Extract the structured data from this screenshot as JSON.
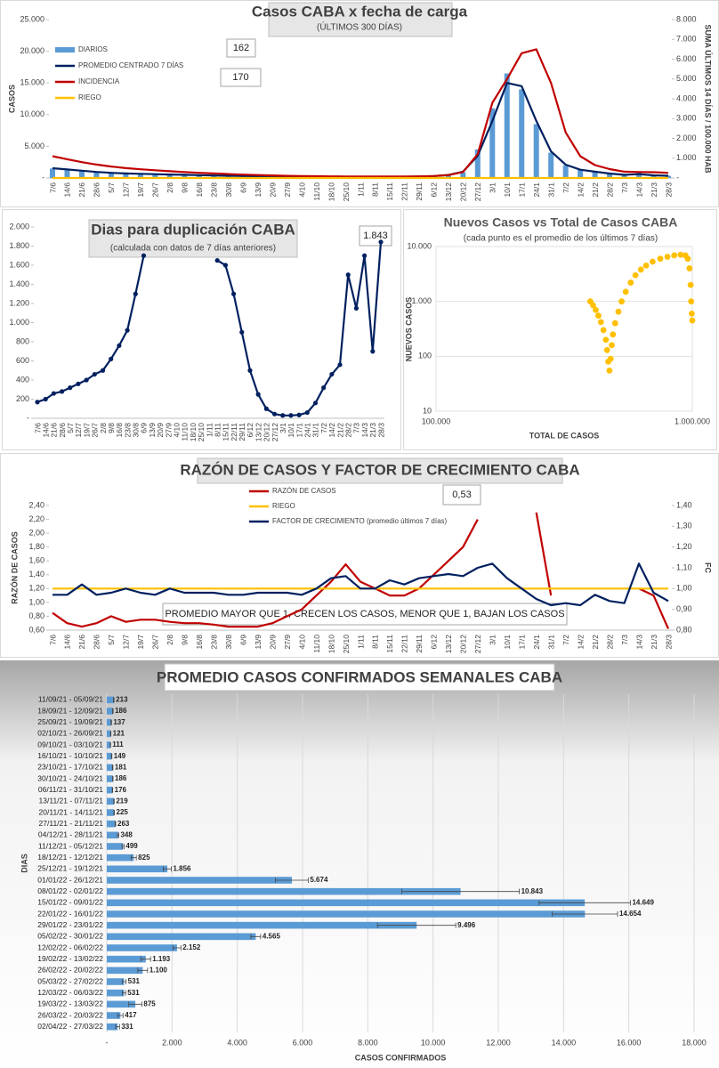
{
  "chart_data": [
    {
      "type": "combo",
      "title": "Casos  CABA x fecha  de carga",
      "subtitle": "(ÚLTIMOS 300 DÍAS)",
      "y_label": "CASOS",
      "y2_label": "SUMA ÚLTIMOS 14 DÍAS / 100.000 HAB",
      "annotations": [
        "162",
        "170"
      ],
      "legend": "top-left",
      "categories": [
        "7/6",
        "14/6",
        "21/6",
        "28/6",
        "5/7",
        "12/7",
        "19/7",
        "26/7",
        "2/8",
        "9/8",
        "16/8",
        "23/8",
        "30/8",
        "6/9",
        "13/9",
        "20/9",
        "27/9",
        "4/10",
        "11/10",
        "18/10",
        "25/10",
        "1/11",
        "8/11",
        "15/11",
        "22/11",
        "29/11",
        "6/12",
        "13/12",
        "20/12",
        "27/12",
        "3/1",
        "10/1",
        "17/1",
        "24/1",
        "31/1",
        "7/2",
        "14/2",
        "21/2",
        "28/2",
        "7/3",
        "14/3",
        "21/3",
        "28/3"
      ],
      "ylim": [
        0,
        25000
      ],
      "yticks": [
        {
          "value": 0,
          "label": "-"
        },
        {
          "value": 5000,
          "label": "5.000"
        },
        {
          "value": 10000,
          "label": "10.000"
        },
        {
          "value": 15000,
          "label": "15.000"
        },
        {
          "value": 20000,
          "label": "20.000"
        },
        {
          "value": 25000,
          "label": "25.000"
        }
      ],
      "y2lim": [
        0,
        8000
      ],
      "y2ticks": [
        {
          "value": 0,
          "label": "-"
        },
        {
          "value": 1000,
          "label": "1.000"
        },
        {
          "value": 2000,
          "label": "2.000"
        },
        {
          "value": 3000,
          "label": "3.000"
        },
        {
          "value": 4000,
          "label": "4.000"
        },
        {
          "value": 5000,
          "label": "5.000"
        },
        {
          "value": 6000,
          "label": "6.000"
        },
        {
          "value": 7000,
          "label": "7.000"
        },
        {
          "value": 8000,
          "label": "8.000"
        }
      ],
      "series": [
        {
          "name": "DIARIOS",
          "type": "bar",
          "color": "#5b9bd5",
          "values": [
            1500,
            1300,
            1100,
            900,
            800,
            700,
            650,
            600,
            550,
            500,
            450,
            400,
            350,
            300,
            280,
            250,
            230,
            220,
            200,
            200,
            190,
            180,
            180,
            190,
            200,
            230,
            300,
            500,
            900,
            4500,
            11000,
            16500,
            14000,
            8500,
            4000,
            2000,
            1300,
            1000,
            700,
            500,
            900,
            400,
            350
          ]
        },
        {
          "name": "PROMEDIO CENTRADO 7 DÍAS",
          "type": "line",
          "color": "#002060",
          "values": [
            1550,
            1350,
            1150,
            950,
            820,
            720,
            660,
            600,
            550,
            500,
            450,
            400,
            350,
            310,
            280,
            250,
            230,
            220,
            200,
            200,
            190,
            180,
            180,
            190,
            200,
            230,
            300,
            480,
            1000,
            3500,
            9000,
            15000,
            14500,
            9000,
            4200,
            2100,
            1300,
            1000,
            700,
            500,
            600,
            420,
            350
          ]
        },
        {
          "name": "INCIDENCIA",
          "type": "line",
          "axis": "y2",
          "color": "#c00000",
          "values": [
            1100,
            950,
            800,
            680,
            580,
            500,
            440,
            390,
            340,
            300,
            260,
            230,
            200,
            170,
            150,
            130,
            110,
            100,
            90,
            80,
            75,
            70,
            70,
            70,
            75,
            80,
            100,
            150,
            300,
            1200,
            3800,
            5000,
            6300,
            6500,
            4800,
            2300,
            1100,
            650,
            450,
            320,
            300,
            290,
            260
          ]
        },
        {
          "name": "RIEGO",
          "type": "line",
          "axis": "y2",
          "color": "#ffc000",
          "values": [
            0,
            0,
            0,
            0,
            0,
            0,
            0,
            0,
            0,
            0,
            0,
            0,
            0,
            0,
            0,
            0,
            0,
            0,
            0,
            0,
            0,
            0,
            0,
            0,
            0,
            0,
            0,
            0,
            0,
            0,
            0,
            0,
            0,
            0,
            0,
            0,
            0,
            0,
            0,
            0,
            0,
            0,
            0
          ]
        }
      ]
    },
    {
      "type": "line",
      "title": "Dias para duplicación CABA",
      "subtitle": "(calculada con datos de 7 días anteriores)",
      "annotations": [
        "1.843"
      ],
      "categories": [
        "7/6",
        "14/6",
        "21/6",
        "28/6",
        "5/7",
        "12/7",
        "19/7",
        "26/7",
        "2/8",
        "9/8",
        "16/8",
        "23/8",
        "30/8",
        "6/9",
        "13/9",
        "20/9",
        "27/9",
        "4/10",
        "11/10",
        "18/10",
        "25/10",
        "1/11",
        "8/11",
        "15/11",
        "22/11",
        "29/11",
        "6/12",
        "13/12",
        "20/12",
        "27/12",
        "3/1",
        "10/1",
        "17/1",
        "24/1",
        "31/1",
        "7/2",
        "14/2",
        "21/2",
        "28/2",
        "7/3",
        "14/3",
        "21/3",
        "28/3"
      ],
      "ylim": [
        0,
        2000
      ],
      "yticks": [
        {
          "value": 0,
          "label": "-"
        },
        200,
        400,
        600,
        800,
        {
          "value": 1000,
          "label": "1.000"
        },
        {
          "value": 1200,
          "label": "1.200"
        },
        {
          "value": 1400,
          "label": "1.400"
        },
        {
          "value": 1600,
          "label": "1.600"
        },
        {
          "value": 1800,
          "label": "1.800"
        },
        {
          "value": 2000,
          "label": "2.000"
        }
      ],
      "series": [
        {
          "type": "line",
          "markers": true,
          "color": "#002060",
          "values": [
            170,
            200,
            260,
            280,
            320,
            360,
            400,
            460,
            500,
            620,
            760,
            920,
            1300,
            1700,
            null,
            null,
            null,
            null,
            null,
            null,
            null,
            null,
            1650,
            1600,
            1300,
            900,
            500,
            250,
            100,
            45,
            30,
            30,
            35,
            60,
            160,
            320,
            460,
            560,
            1500,
            1150,
            1700,
            700,
            1843
          ]
        }
      ]
    },
    {
      "type": "scatter",
      "title": "Nuevos Casos vs Total de Casos CABA",
      "subtitle": "(cada punto es el promedio de los últimos 7 días)",
      "x_label": "TOTAL DE CASOS",
      "y_label": "NUEVOS CASOS",
      "log_x": true,
      "log_y": true,
      "color": "#ffc000",
      "x": [
        400000,
        410000,
        420000,
        430000,
        440000,
        450000,
        460000,
        465000,
        470000,
        475000,
        480000,
        485000,
        490000,
        500000,
        515000,
        530000,
        550000,
        575000,
        600000,
        630000,
        660000,
        700000,
        750000,
        800000,
        850000,
        900000,
        940000,
        960000,
        975000,
        985000,
        990000,
        995000,
        1000000
      ],
      "values": [
        1000,
        850,
        700,
        550,
        420,
        300,
        200,
        130,
        80,
        55,
        90,
        160,
        250,
        400,
        650,
        1000,
        1500,
        2200,
        3000,
        3800,
        4500,
        5300,
        6000,
        6500,
        6900,
        7100,
        6900,
        6000,
        4000,
        2000,
        1000,
        600,
        450
      ],
      "xlim": [
        100000,
        1000000
      ],
      "xticks": [
        {
          "value": 100000,
          "label": "100.000"
        },
        {
          "value": 1000000,
          "label": "1.000.000"
        }
      ],
      "ylim": [
        10,
        10000
      ],
      "yticks": [
        10,
        100,
        {
          "value": 1000,
          "label": "1.000"
        },
        {
          "value": 10000,
          "label": "10.000"
        }
      ]
    },
    {
      "type": "line",
      "title": "RAZÓN DE CASOS Y FACTOR DE CRECIMIENTO CABA",
      "y_label": "RAZÓN DE CASOS",
      "y2_label": "FC",
      "legend": "top-center",
      "annotations": [
        "0,53",
        "PROMEDIO MAYOR QUE 1, CRECEN LOS CASOS, MENOR QUE 1, BAJAN LOS CASOS"
      ],
      "categories": [
        "7/6",
        "14/6",
        "21/6",
        "28/6",
        "5/7",
        "12/7",
        "19/7",
        "26/7",
        "2/8",
        "9/8",
        "16/8",
        "23/8",
        "30/8",
        "6/9",
        "13/9",
        "20/9",
        "27/9",
        "4/10",
        "11/10",
        "18/10",
        "25/10",
        "1/11",
        "8/11",
        "15/11",
        "22/11",
        "29/11",
        "6/12",
        "13/12",
        "20/12",
        "27/12",
        "3/1",
        "10/1",
        "17/1",
        "24/1",
        "31/1",
        "7/2",
        "14/2",
        "21/2",
        "28/2",
        "7/3",
        "14/3",
        "21/3",
        "28/3"
      ],
      "ylim": [
        0.6,
        2.4
      ],
      "yticks": [
        {
          "value": 0.6,
          "label": "0,60"
        },
        {
          "value": 0.8,
          "label": "0,80"
        },
        {
          "value": 1,
          "label": "1,00"
        },
        {
          "value": 1.2,
          "label": "1,20"
        },
        {
          "value": 1.4,
          "label": "1,40"
        },
        {
          "value": 1.6,
          "label": "1,60"
        },
        {
          "value": 1.8,
          "label": "1,80"
        },
        {
          "value": 2,
          "label": "2,00"
        },
        {
          "value": 2.2,
          "label": "2,20"
        },
        {
          "value": 2.4,
          "label": "2,40"
        }
      ],
      "y2lim": [
        0.8,
        1.4
      ],
      "y2ticks": [
        {
          "value": 0.8,
          "label": "0,80"
        },
        {
          "value": 0.9,
          "label": "0,90"
        },
        {
          "value": 1,
          "label": "1,00"
        },
        {
          "value": 1.1,
          "label": "1,10"
        },
        {
          "value": 1.2,
          "label": "1,20"
        },
        {
          "value": 1.3,
          "label": "1,30"
        },
        {
          "value": 1.4,
          "label": "1,40"
        }
      ],
      "series": [
        {
          "name": "RAZÓN DE CASOS",
          "type": "line",
          "color": "#c00000",
          "values": [
            0.85,
            0.7,
            0.65,
            0.7,
            0.8,
            0.72,
            0.75,
            0.75,
            0.72,
            0.7,
            0.7,
            0.68,
            0.65,
            0.65,
            0.65,
            0.7,
            0.8,
            0.9,
            1.1,
            1.3,
            1.55,
            1.3,
            1.2,
            1.1,
            1.1,
            1.2,
            1.4,
            1.6,
            1.8,
            2.2,
            null,
            null,
            null,
            2.3,
            1.1,
            null,
            null,
            null,
            null,
            null,
            1.2,
            1.1,
            0.62
          ]
        },
        {
          "name": "RIEGO",
          "type": "line",
          "axis": "y2",
          "color": "#ffc000",
          "values": [
            1,
            1,
            1,
            1,
            1,
            1,
            1,
            1,
            1,
            1,
            1,
            1,
            1,
            1,
            1,
            1,
            1,
            1,
            1,
            1,
            1,
            1,
            1,
            1,
            1,
            1,
            1,
            1,
            1,
            1,
            1,
            1,
            1,
            1,
            1,
            1,
            1,
            1,
            1,
            1,
            1,
            1,
            1
          ]
        },
        {
          "name": "FACTOR DE CRECIMIENTO (promedio últimos 7 días)",
          "type": "line",
          "axis": "y2",
          "color": "#002060",
          "values": [
            0.97,
            0.97,
            1.02,
            0.97,
            0.98,
            1.0,
            0.98,
            0.97,
            1.0,
            0.98,
            0.98,
            0.98,
            0.97,
            0.97,
            0.98,
            0.98,
            0.98,
            0.97,
            1.0,
            1.05,
            1.06,
            1.0,
            1.0,
            1.04,
            1.02,
            1.05,
            1.06,
            1.07,
            1.06,
            1.1,
            1.12,
            1.05,
            1.0,
            0.95,
            0.92,
            0.93,
            0.92,
            0.97,
            0.94,
            0.93,
            1.12,
            0.98,
            0.94
          ]
        }
      ]
    },
    {
      "type": "barh",
      "title": "PROMEDIO CASOS CONFIRMADOS SEMANALES CABA",
      "x_label": "CASOS CONFIRMADOS",
      "y_label": "DIAS",
      "color": "#5b9bd5",
      "grid": true,
      "categories": [
        "11/09/21 - 05/09/21",
        "18/09/21 - 12/09/21",
        "25/09/21 - 19/09/21",
        "02/10/21 - 26/09/21",
        "09/10/21 - 03/10/21",
        "16/10/21 - 10/10/21",
        "23/10/21 - 17/10/21",
        "30/10/21 - 24/10/21",
        "06/11/21 - 31/10/21",
        "13/11/21 - 07/11/21",
        "20/11/21 - 14/11/21",
        "27/11/21 - 21/11/21",
        "04/12/21 - 28/11/21",
        "11/12/21 - 05/12/21",
        "18/12/21 - 12/12/21",
        "25/12/21 - 19/12/21",
        "01/01/22 - 26/12/21",
        "08/01/22 - 02/01/22",
        "15/01/22 - 09/01/22",
        "22/01/22 - 16/01/22",
        "29/01/22 - 23/01/22",
        "05/02/22 - 30/01/22",
        "12/02/22 - 06/02/22",
        "19/02/22 - 13/02/22",
        "26/02/22 - 20/02/22",
        "05/03/22 - 27/02/22",
        "12/03/22 - 06/03/22",
        "19/03/22 - 13/03/22",
        "26/03/22 - 20/03/22",
        "02/04/22 - 27/03/22"
      ],
      "values": [
        213,
        186,
        137,
        121,
        111,
        149,
        181,
        186,
        176,
        219,
        225,
        263,
        348,
        499,
        825,
        1856,
        5674,
        10843,
        14649,
        14654,
        9496,
        4565,
        2152,
        1193,
        1100,
        531,
        531,
        875,
        417,
        331
      ],
      "value_labels": [
        "213",
        "186",
        "137",
        "121",
        "111",
        "149",
        "181",
        "186",
        "176",
        "219",
        "225",
        "263",
        "348",
        "499",
        "825",
        "1.856",
        "5.674",
        "10.843",
        "14.649",
        "14.654",
        "9.496",
        "4.565",
        "2.152",
        "1.193",
        "1.100",
        "531",
        "531",
        "875",
        "417",
        "331"
      ],
      "errors": [
        10,
        8,
        8,
        6,
        6,
        8,
        8,
        6,
        6,
        8,
        8,
        10,
        20,
        30,
        80,
        120,
        500,
        1800,
        1400,
        1000,
        1200,
        150,
        120,
        150,
        150,
        60,
        50,
        200,
        80,
        60
      ],
      "xlim": [
        0,
        18000
      ],
      "xticks": [
        {
          "value": 0,
          "label": "-"
        },
        {
          "value": 2000,
          "label": "2.000"
        },
        {
          "value": 4000,
          "label": "4.000"
        },
        {
          "value": 6000,
          "label": "6.000"
        },
        {
          "value": 8000,
          "label": "8.000"
        },
        {
          "value": 10000,
          "label": "10.000"
        },
        {
          "value": 12000,
          "label": "12.000"
        },
        {
          "value": 14000,
          "label": "14.000"
        },
        {
          "value": 16000,
          "label": "16.000"
        },
        {
          "value": 18000,
          "label": "18.000"
        }
      ]
    }
  ]
}
